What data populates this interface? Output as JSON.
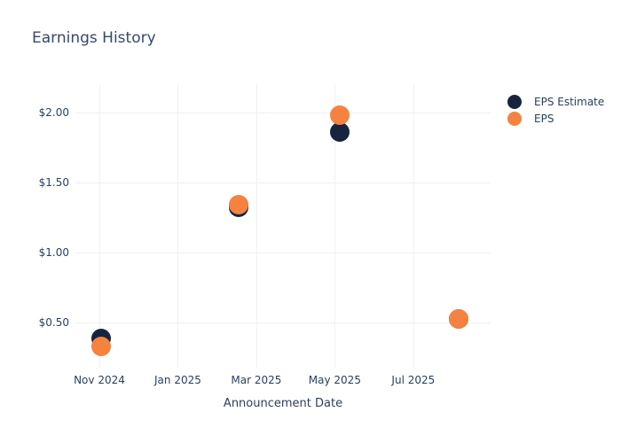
{
  "chart_data": {
    "type": "scatter",
    "title": "Earnings History",
    "xlabel": "Announcement Date",
    "ylabel": "",
    "background": "#ffffff",
    "grid": true,
    "gridline_color": "#edf1f6",
    "text_color": "#2a3f5f",
    "x_axis": {
      "unit": "months since Nov 2024",
      "range": [
        -0.61,
        9.97
      ],
      "ticks": [
        {
          "pos": 0,
          "label": "Nov 2024"
        },
        {
          "pos": 2,
          "label": "Jan 2025"
        },
        {
          "pos": 4,
          "label": "Mar 2025"
        },
        {
          "pos": 6,
          "label": "May 2025"
        },
        {
          "pos": 8,
          "label": "Jul 2025"
        }
      ]
    },
    "y_axis": {
      "unit": "USD per share",
      "range": [
        0.18,
        2.2
      ],
      "ticks": [
        {
          "value": 2.0,
          "label": "$2.00"
        },
        {
          "value": 1.5,
          "label": "$1.50"
        },
        {
          "value": 1.0,
          "label": "$1.00"
        },
        {
          "value": 0.5,
          "label": "$0.50"
        }
      ]
    },
    "series": [
      {
        "name": "EPS Estimate",
        "color": "#16243e",
        "marker": "circle",
        "points": [
          {
            "x": 0.05,
            "date_est": "Nov 2024",
            "y": 0.39
          },
          {
            "x": 3.55,
            "date_est": "Feb 2025",
            "y": 1.32
          },
          {
            "x": 6.12,
            "date_est": "May 2025",
            "y": 1.86
          },
          {
            "x": 9.15,
            "date_est": "Aug 2025",
            "y": 0.53
          }
        ]
      },
      {
        "name": "EPS",
        "color": "#f5823f",
        "marker": "circle",
        "points": [
          {
            "x": 0.05,
            "date_est": "Nov 2024",
            "y": 0.33
          },
          {
            "x": 3.55,
            "date_est": "Feb 2025",
            "y": 1.34
          },
          {
            "x": 6.12,
            "date_est": "May 2025",
            "y": 1.98
          },
          {
            "x": 9.15,
            "date_est": "Aug 2025",
            "y": 0.53
          }
        ]
      }
    ],
    "legend": {
      "position": "top-right",
      "entries": [
        "EPS Estimate",
        "EPS"
      ]
    }
  }
}
